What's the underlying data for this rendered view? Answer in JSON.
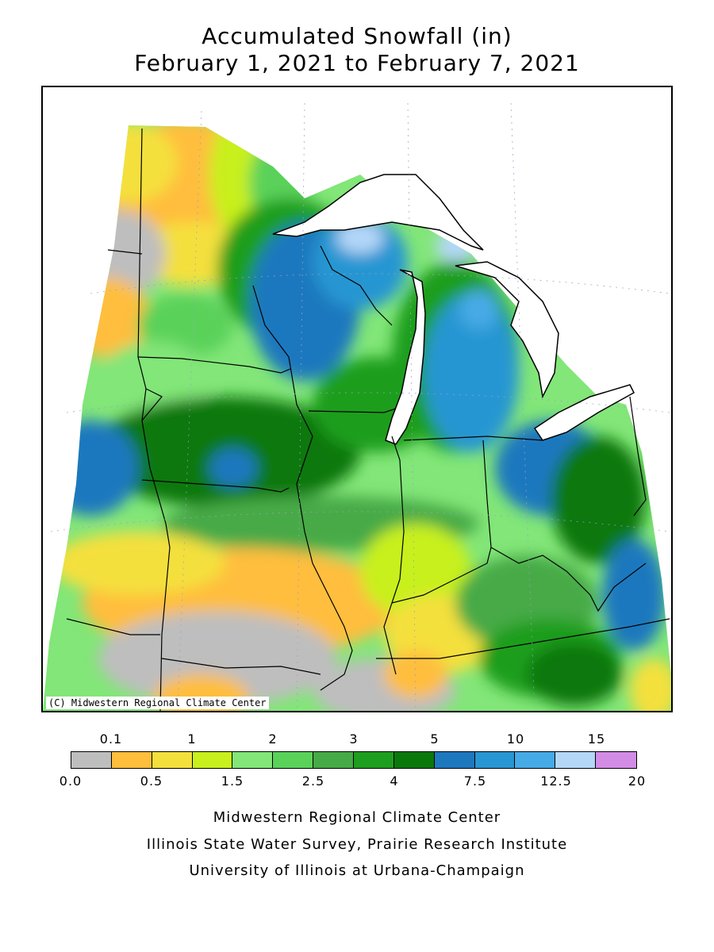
{
  "title": {
    "line1": "Accumulated Snowfall (in)",
    "line2": "February 1, 2021 to February 7, 2021"
  },
  "map": {
    "copyright": "(C) Midwestern Regional Climate Center",
    "region": "Midwest United States"
  },
  "legend": {
    "upper_labels": [
      "0.1",
      "1",
      "2",
      "3",
      "5",
      "10",
      "15"
    ],
    "lower_labels": [
      "0.0",
      "0.5",
      "1.5",
      "2.5",
      "4",
      "7.5",
      "12.5",
      "20"
    ],
    "colors": [
      "#bebebe",
      "#ffbe3c",
      "#f4e03c",
      "#c8f01e",
      "#82e678",
      "#5ad25a",
      "#46aa46",
      "#1e9e1e",
      "#0a780a",
      "#1e78be",
      "#2896d2",
      "#46aae6",
      "#b4d7f8",
      "#d28ce6"
    ]
  },
  "credits": [
    "Midwestern Regional Climate Center",
    "Illinois State Water Survey, Prairie Research Institute",
    "University of Illinois at Urbana-Champaign"
  ]
}
